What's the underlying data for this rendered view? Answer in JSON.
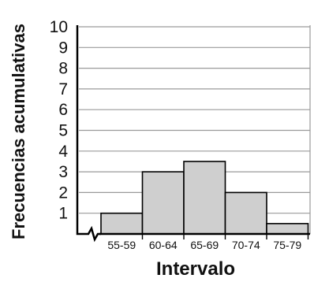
{
  "chart_data": {
    "type": "bar",
    "title": "",
    "xlabel": "Intervalo",
    "ylabel": "Frecuencias acumulativas",
    "categories": [
      "55-59",
      "60-64",
      "65-69",
      "70-74",
      "75-79"
    ],
    "values": [
      1,
      3,
      3.5,
      2,
      0.5
    ],
    "yticks": [
      "1",
      "2",
      "3",
      "4",
      "5",
      "6",
      "7",
      "8",
      "9",
      "10"
    ],
    "ylim": [
      0,
      10
    ],
    "grid": true,
    "legend": "none",
    "colors": {
      "bar_fill": "#cfcfcf",
      "bar_stroke": "#000000",
      "grid": "#9a9a9a",
      "axis": "#000000"
    },
    "axis_break": true
  }
}
